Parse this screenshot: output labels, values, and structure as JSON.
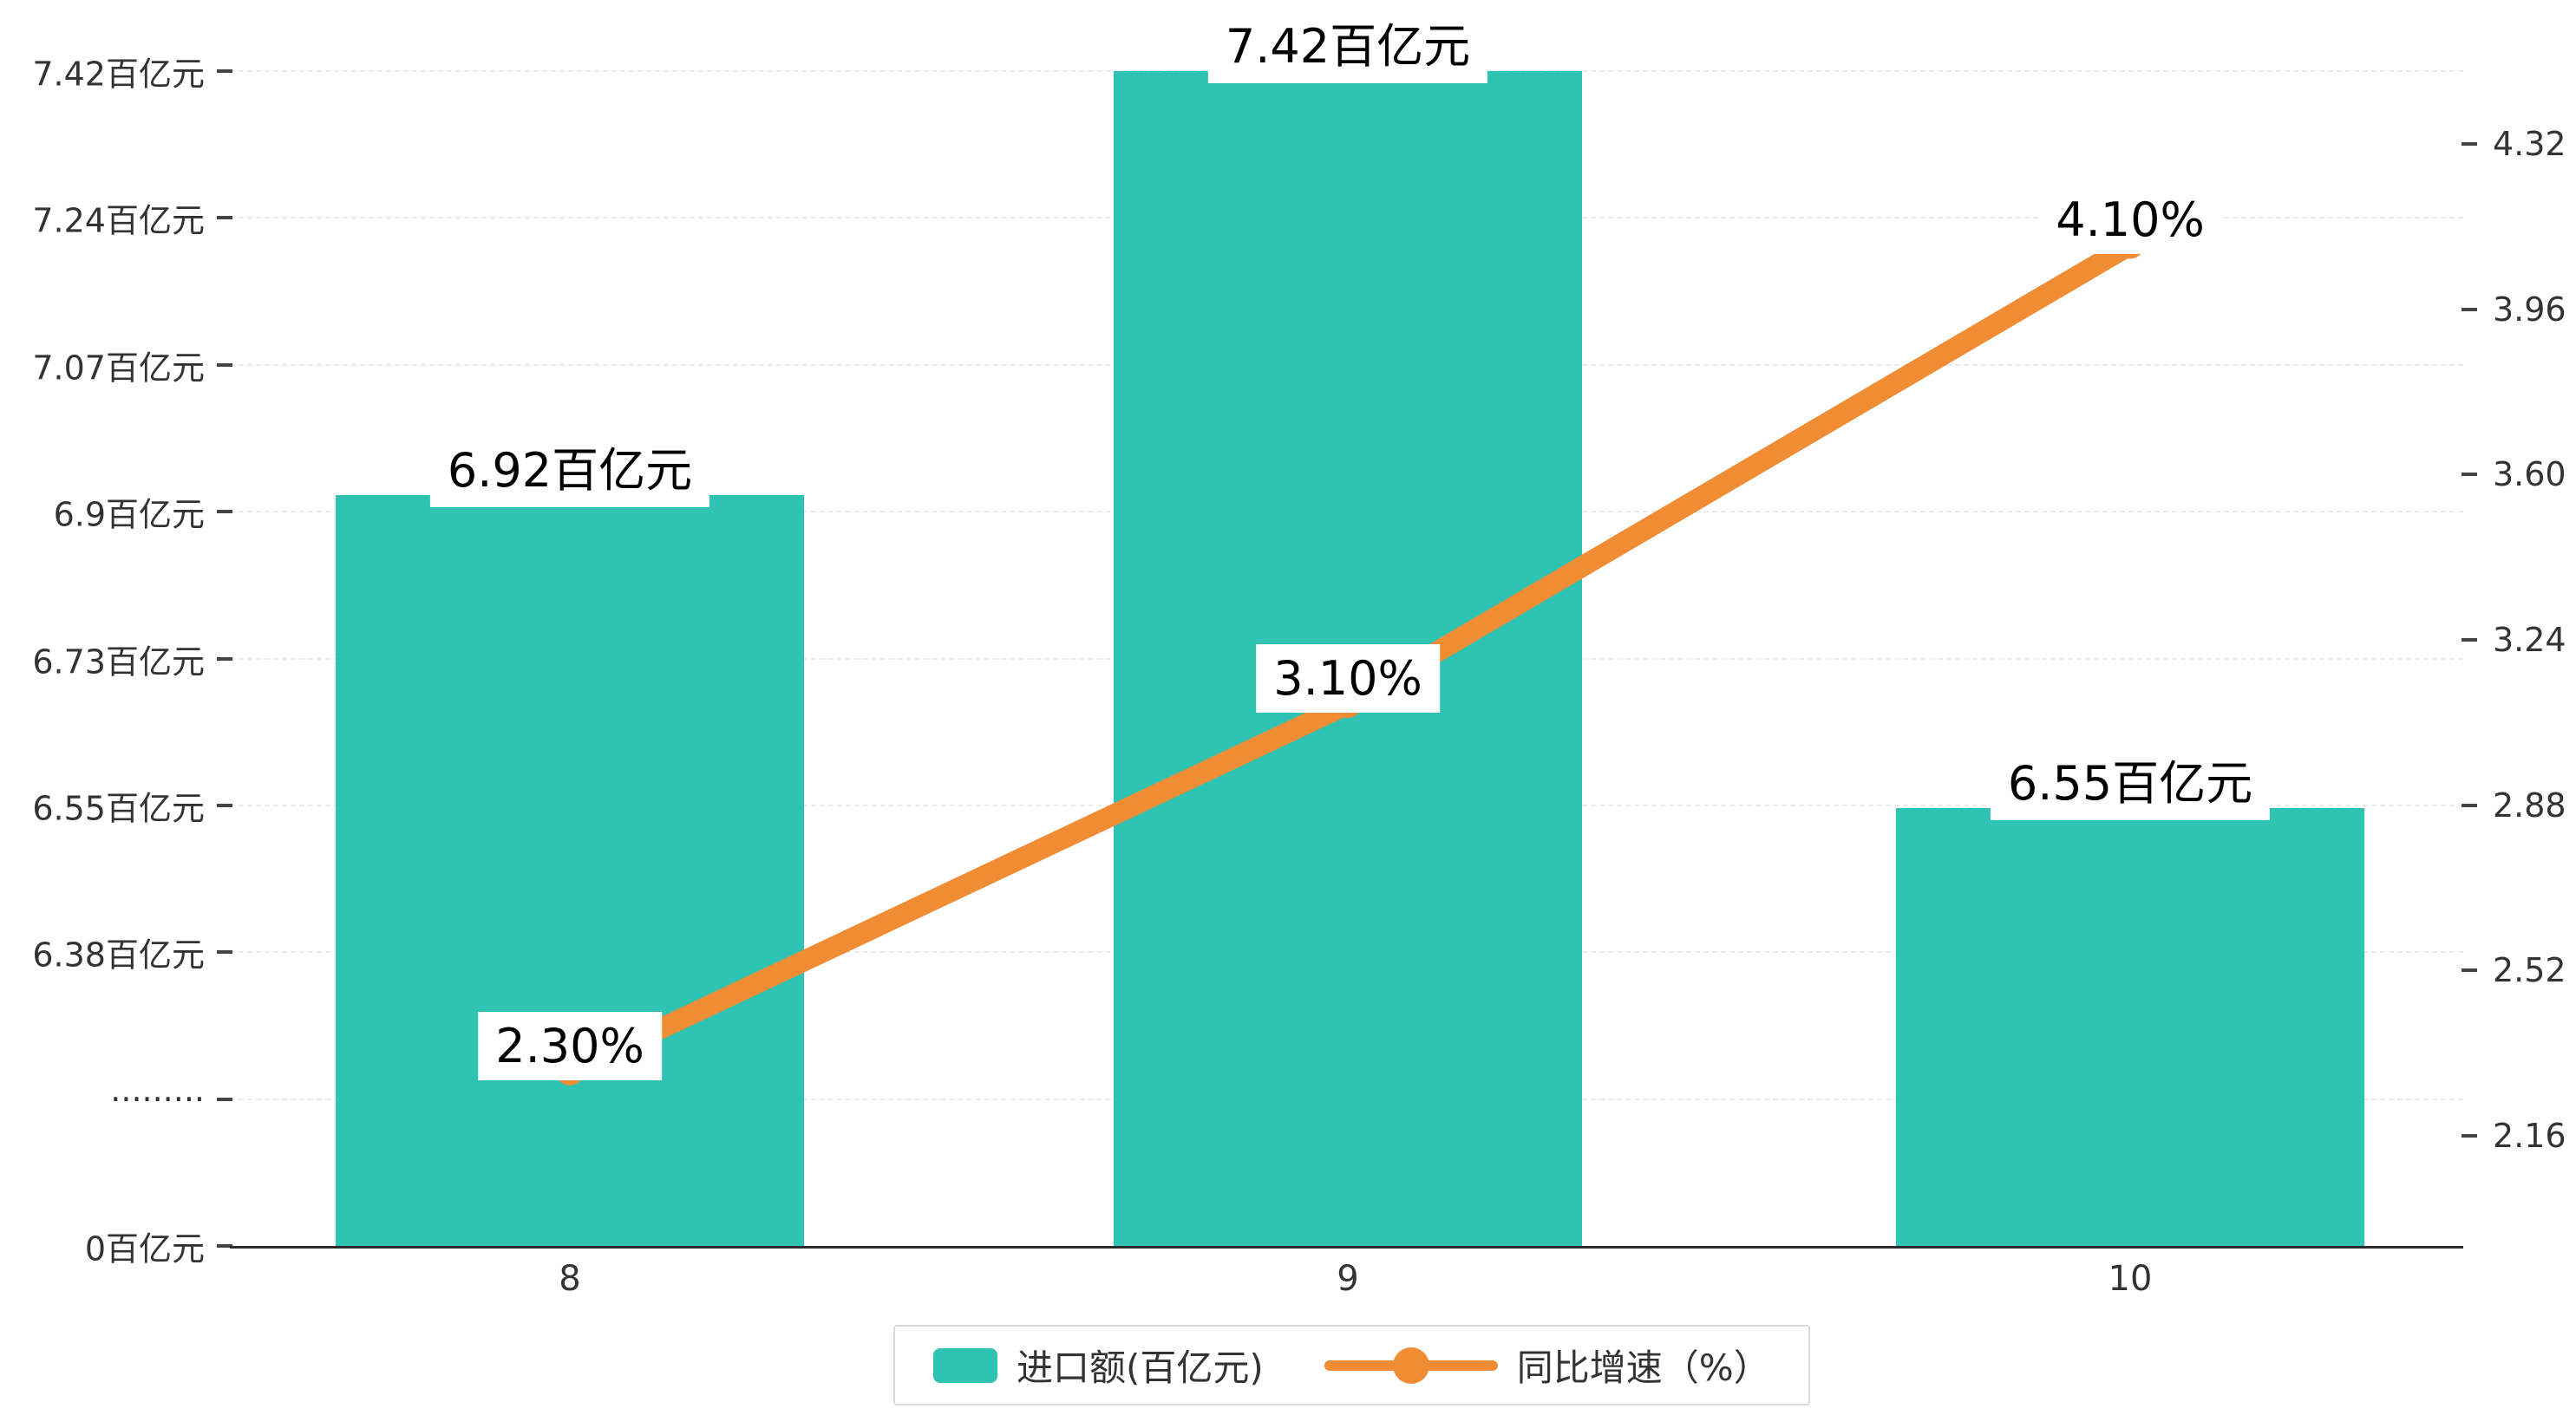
{
  "chart_data": {
    "type": "bar",
    "subtype": "bar-line-combo-dual-axis",
    "categories": [
      "8",
      "9",
      "10"
    ],
    "series": [
      {
        "name": "进口额(百亿元)",
        "type": "bar",
        "axis": "left",
        "color": "#2EC3B3",
        "values": [
          6.92,
          7.42,
          6.55
        ],
        "data_labels": [
          "6.92百亿元",
          "7.42百亿元",
          "6.55百亿元"
        ]
      },
      {
        "name": "同比增速（%）",
        "type": "line",
        "axis": "right",
        "color": "#F08C33",
        "values": [
          2.3,
          3.1,
          4.1
        ],
        "data_labels": [
          "2.30%",
          "3.10%",
          "4.10%"
        ]
      }
    ],
    "left_axis": {
      "tick_labels": [
        "0百亿元",
        "·········",
        "6.38百亿元",
        "6.55百亿元",
        "6.73百亿元",
        "6.9百亿元",
        "7.07百亿元",
        "7.24百亿元",
        "7.42百亿元"
      ],
      "tick_values": [
        0,
        null,
        6.38,
        6.55,
        6.73,
        6.9,
        7.07,
        7.24,
        7.42
      ],
      "axis_break": true,
      "upper_min": 6.38,
      "upper_max": 7.42
    },
    "right_axis": {
      "tick_labels": [
        "2.16",
        "2.52",
        "2.88",
        "3.24",
        "3.60",
        "3.96",
        "4.32"
      ],
      "min": 2.16,
      "max": 4.32
    },
    "grid": "horizontal-dashed",
    "legend_position": "bottom",
    "title": ""
  }
}
